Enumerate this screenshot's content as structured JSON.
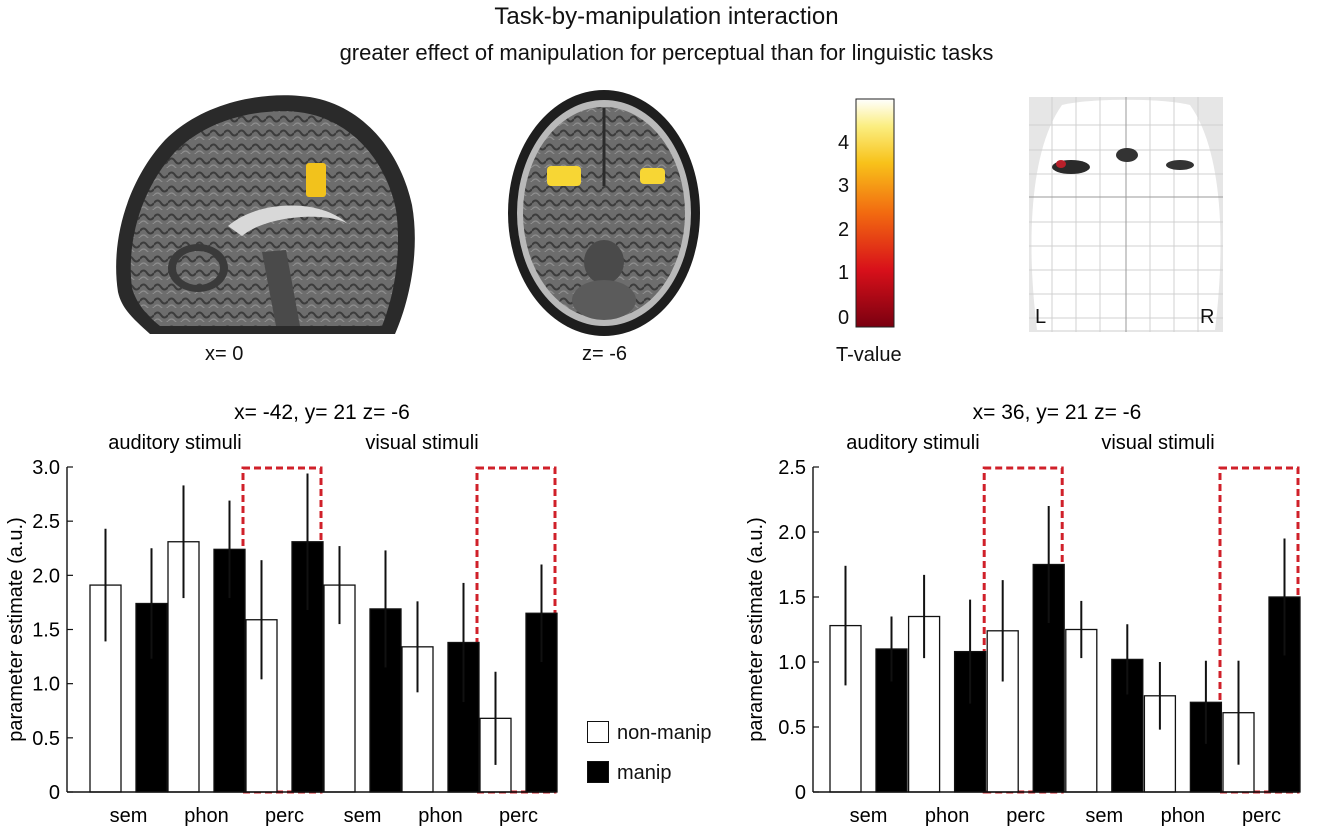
{
  "title": "Task-by-manipulation interaction",
  "subtitle": "greater effect of manipulation for perceptual than for linguistic tasks",
  "brain": {
    "sagittal_label": "x= 0",
    "axial_label": "z= -6",
    "colorbar_label": "T-value",
    "colorbar_ticks": [
      "0",
      "1",
      "2",
      "3",
      "4"
    ],
    "glass_left": "L",
    "glass_right": "R"
  },
  "legend": {
    "nonmanip": "non-manip",
    "manip": "manip"
  },
  "colors": {
    "nonmanip": "#ffffff",
    "manip": "#000000",
    "highlight": "#d0202a"
  },
  "chart_data": [
    {
      "type": "bar",
      "title": "x= -42, y= 21 z= -6",
      "ylabel": "parameter estimate (a.u.)",
      "group_labels": [
        "auditory stimuli",
        "visual stimuli"
      ],
      "categories": [
        "sem",
        "phon",
        "perc",
        "sem",
        "phon",
        "perc"
      ],
      "highlighted_categories": [
        2,
        5
      ],
      "ylim": [
        0,
        3.0
      ],
      "yticks": [
        "0",
        "0.5",
        "1.0",
        "1.5",
        "2.0",
        "2.5",
        "3.0"
      ],
      "series": [
        {
          "name": "non-manip",
          "values": [
            1.91,
            2.31,
            1.59,
            1.91,
            1.34,
            0.68
          ],
          "errors": [
            0.52,
            0.52,
            0.55,
            0.36,
            0.42,
            0.43
          ]
        },
        {
          "name": "manip",
          "values": [
            1.74,
            2.24,
            2.31,
            1.69,
            1.38,
            1.65
          ],
          "errors": [
            0.51,
            0.45,
            0.63,
            0.54,
            0.55,
            0.45
          ]
        }
      ]
    },
    {
      "type": "bar",
      "title": "x= 36, y= 21 z= -6",
      "ylabel": "parameter estimate (a.u.)",
      "group_labels": [
        "auditory stimuli",
        "visual stimuli"
      ],
      "categories": [
        "sem",
        "phon",
        "perc",
        "sem",
        "phon",
        "perc"
      ],
      "highlighted_categories": [
        2,
        5
      ],
      "ylim": [
        0,
        2.5
      ],
      "yticks": [
        "0",
        "0.5",
        "1.0",
        "1.5",
        "2.0",
        "2.5"
      ],
      "series": [
        {
          "name": "non-manip",
          "values": [
            1.28,
            1.35,
            1.24,
            1.25,
            0.74,
            0.61
          ],
          "errors": [
            0.46,
            0.32,
            0.39,
            0.22,
            0.26,
            0.4
          ]
        },
        {
          "name": "manip",
          "values": [
            1.1,
            1.08,
            1.75,
            1.02,
            0.69,
            1.5
          ],
          "errors": [
            0.25,
            0.4,
            0.45,
            0.27,
            0.32,
            0.45
          ]
        }
      ]
    }
  ]
}
